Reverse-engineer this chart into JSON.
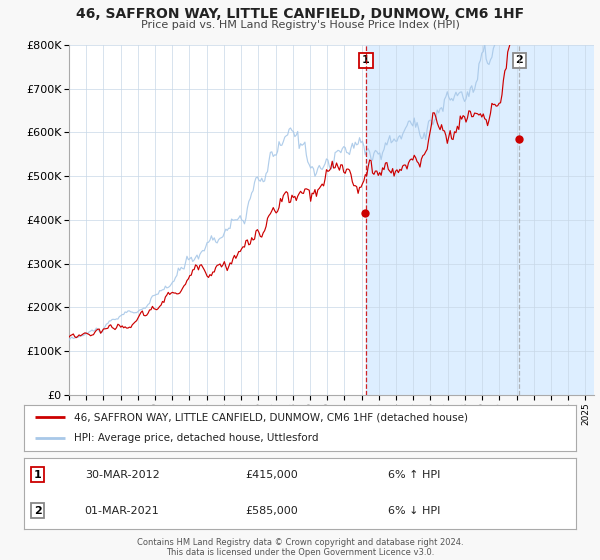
{
  "title": "46, SAFFRON WAY, LITTLE CANFIELD, DUNMOW, CM6 1HF",
  "subtitle": "Price paid vs. HM Land Registry's House Price Index (HPI)",
  "legend_line1": "46, SAFFRON WAY, LITTLE CANFIELD, DUNMOW, CM6 1HF (detached house)",
  "legend_line2": "HPI: Average price, detached house, Uttlesford",
  "transaction1_date": "30-MAR-2012",
  "transaction1_price": "£415,000",
  "transaction1_hpi": "6% ↑ HPI",
  "transaction2_date": "01-MAR-2021",
  "transaction2_price": "£585,000",
  "transaction2_hpi": "6% ↓ HPI",
  "footer1": "Contains HM Land Registry data © Crown copyright and database right 2024.",
  "footer2": "This data is licensed under the Open Government Licence v3.0.",
  "red_color": "#cc0000",
  "blue_color": "#a8c8e8",
  "box1_color": "#cc0000",
  "box2_color": "#888888",
  "highlight_bg": "#ddeeff",
  "ylim": [
    0,
    800000
  ],
  "yticks": [
    0,
    100000,
    200000,
    300000,
    400000,
    500000,
    600000,
    700000,
    800000
  ],
  "xstart": 1995,
  "xend": 2025,
  "t1_year": 2012.25,
  "t1_value": 415000,
  "t2_year": 2021.17,
  "t2_value": 585000,
  "fig_bg": "#f8f8f8"
}
